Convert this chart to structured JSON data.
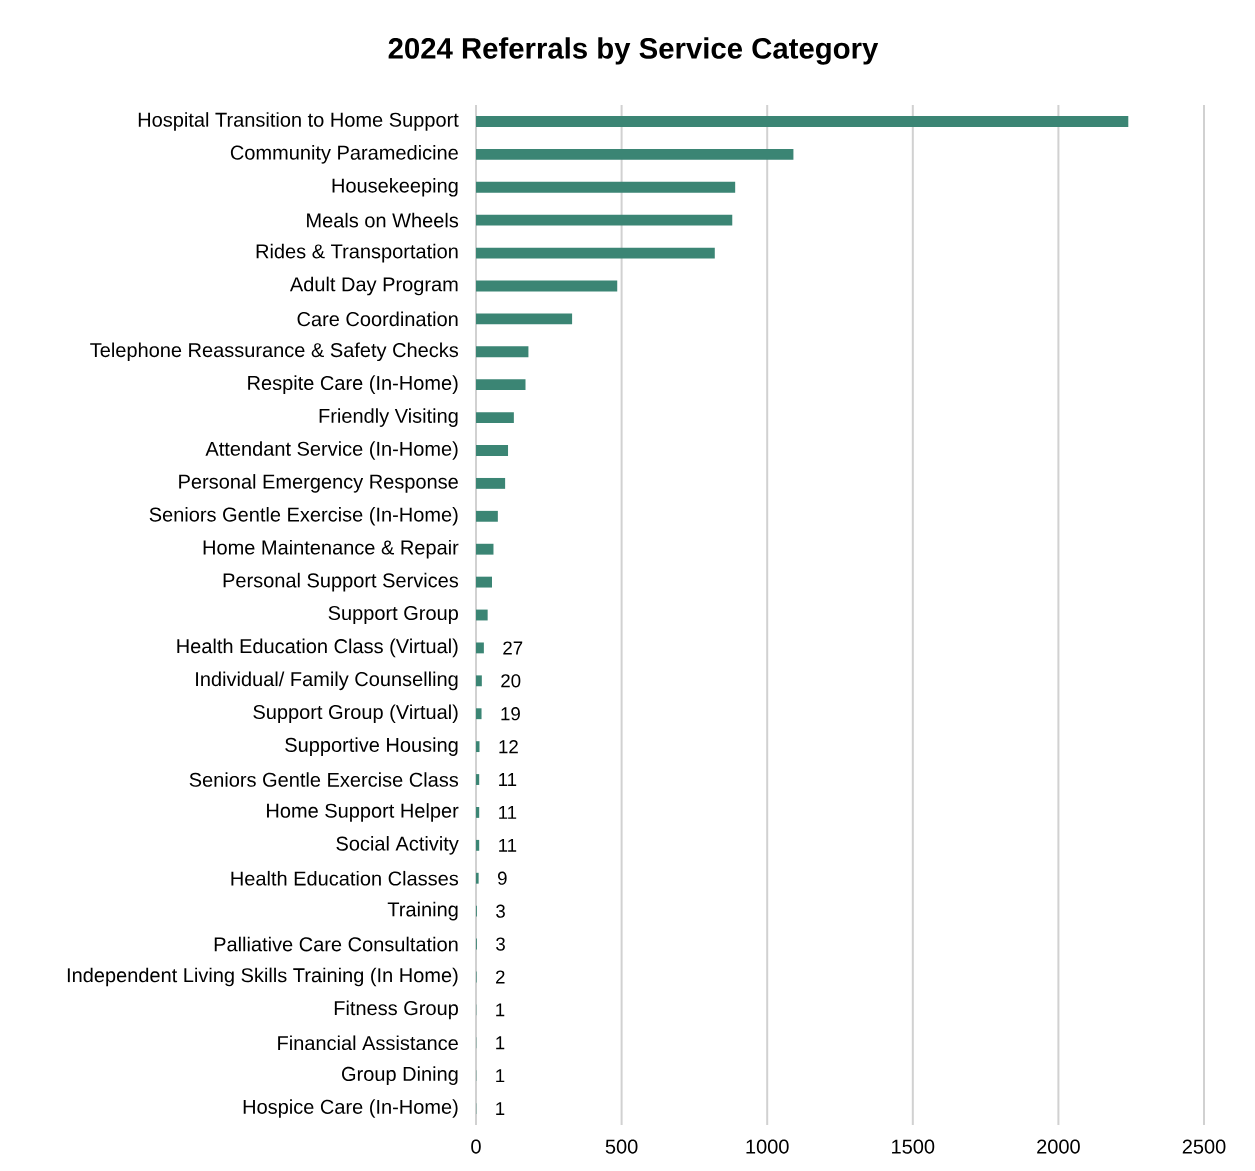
{
  "chart_data": {
    "type": "bar",
    "orientation": "horizontal",
    "title": "2024 Referrals by Service Category",
    "categories": [
      "Hospital Transition to Home Support",
      "Community Paramedicine",
      "Housekeeping",
      "Meals on Wheels",
      "Rides & Transportation",
      "Adult Day Program",
      "Care Coordination",
      "Telephone Reassurance & Safety Checks",
      "Respite Care (In-Home)",
      "Friendly Visiting",
      "Attendant Service (In-Home)",
      "Personal Emergency Response",
      "Seniors Gentle Exercise (In-Home)",
      "Home Maintenance & Repair",
      "Personal Support Services",
      "Support Group",
      "Health Education Class (Virtual)",
      "Individual/ Family Counselling",
      "Support Group (Virtual)",
      "Supportive Housing",
      "Seniors Gentle Exercise Class",
      "Home Support Helper",
      "Social Activity",
      "Health Education Classes",
      "Training",
      "Palliative Care Consultation",
      "Independent Living Skills Training (In Home)",
      "Fitness Group",
      "Financial Assistance",
      "Group Dining",
      "Hospice Care (In-Home)"
    ],
    "values": [
      2240,
      1090,
      890,
      880,
      820,
      485,
      330,
      180,
      170,
      130,
      110,
      100,
      75,
      60,
      55,
      40,
      27,
      20,
      19,
      12,
      11,
      11,
      11,
      9,
      3,
      3,
      2,
      1,
      1,
      1,
      1
    ],
    "value_labels": [
      null,
      null,
      null,
      null,
      null,
      null,
      null,
      null,
      null,
      null,
      null,
      null,
      null,
      null,
      null,
      null,
      "27",
      "20",
      "19",
      "12",
      "11",
      "11",
      "11",
      "9",
      "3",
      "3",
      "2",
      "1",
      "1",
      "1",
      "1"
    ],
    "color": "#3b8574",
    "xlim": [
      0,
      2500
    ],
    "xticks": [
      0,
      500,
      1000,
      1500,
      2000,
      2500
    ],
    "grid": "x"
  }
}
